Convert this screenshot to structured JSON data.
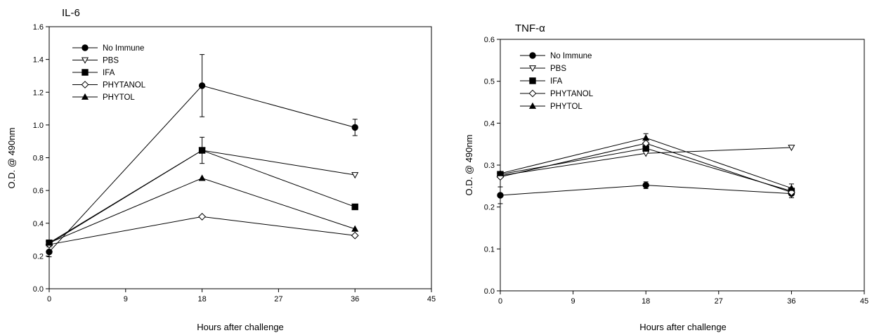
{
  "chart_data": [
    {
      "type": "line",
      "title": "IL-6",
      "xlabel": "Hours after challenge",
      "ylabel": "O.D. @ 490nm",
      "xlim": [
        0,
        45
      ],
      "ylim": [
        0,
        1.6
      ],
      "xticks": [
        "0",
        "9",
        "18",
        "27",
        "36",
        "45"
      ],
      "yticks": [
        "0.0",
        "0.2",
        "0.4",
        "0.6",
        "0.8",
        "1.0",
        "1.2",
        "1.4",
        "1.6"
      ],
      "grid": false,
      "legend": "top-left",
      "x": [
        0,
        18,
        36
      ],
      "series": [
        {
          "name": "No Immune",
          "marker": "circle-filled",
          "values": [
            0.225,
            1.24,
            0.985
          ],
          "errors": [
            0.03,
            0.19,
            0.05
          ]
        },
        {
          "name": "PBS",
          "marker": "triangle-down-open",
          "values": [
            0.275,
            0.845,
            0.695
          ],
          "errors": [
            0,
            0,
            0
          ]
        },
        {
          "name": "IFA",
          "marker": "square-filled",
          "values": [
            0.28,
            0.845,
            0.5
          ],
          "errors": [
            0,
            0.08,
            0
          ]
        },
        {
          "name": "PHYTANOL",
          "marker": "diamond-open",
          "values": [
            0.27,
            0.44,
            0.325
          ],
          "errors": [
            0,
            0,
            0
          ]
        },
        {
          "name": "PHYTOL",
          "marker": "triangle-up-filled",
          "values": [
            0.28,
            0.675,
            0.365
          ],
          "errors": [
            0,
            0,
            0
          ]
        }
      ]
    },
    {
      "type": "line",
      "title": "TNF-α",
      "xlabel": "Hours after challenge",
      "ylabel": "O.D. @ 490nm",
      "xlim": [
        0,
        45
      ],
      "ylim": [
        0,
        0.6
      ],
      "xticks": [
        "0",
        "9",
        "18",
        "27",
        "36",
        "45"
      ],
      "yticks": [
        "0.0",
        "0.1",
        "0.2",
        "0.3",
        "0.4",
        "0.5",
        "0.6"
      ],
      "grid": false,
      "legend": "top-left",
      "x": [
        0,
        18,
        36
      ],
      "series": [
        {
          "name": "No Immune",
          "marker": "circle-filled",
          "values": [
            0.228,
            0.252,
            0.232
          ],
          "errors": [
            0.02,
            0.008,
            0.01
          ]
        },
        {
          "name": "PBS",
          "marker": "triangle-down-open",
          "values": [
            0.275,
            0.328,
            0.342
          ],
          "errors": [
            0,
            0,
            0
          ]
        },
        {
          "name": "IFA",
          "marker": "square-filled",
          "values": [
            0.278,
            0.34,
            0.238
          ],
          "errors": [
            0,
            0,
            0
          ]
        },
        {
          "name": "PHYTANOL",
          "marker": "diamond-open",
          "values": [
            0.272,
            0.352,
            0.235
          ],
          "errors": [
            0,
            0,
            0
          ]
        },
        {
          "name": "PHYTOL",
          "marker": "triangle-up-filled",
          "values": [
            0.28,
            0.365,
            0.245
          ],
          "errors": [
            0,
            0.01,
            0.01
          ]
        }
      ]
    }
  ]
}
